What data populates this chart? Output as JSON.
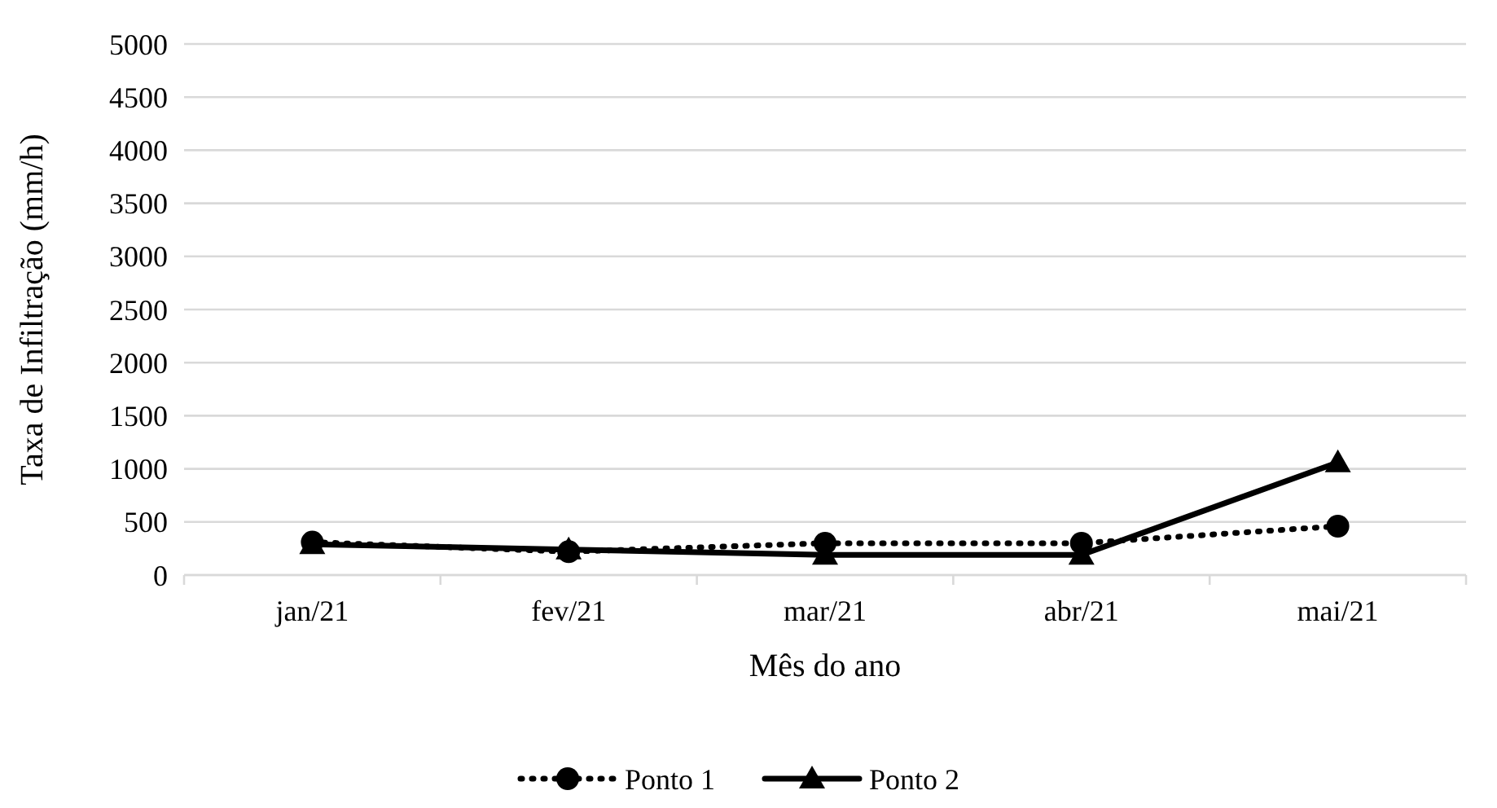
{
  "chart_data": {
    "type": "line",
    "xlabel": "Mês do ano",
    "ylabel": "Taxa de Infiltração (mm/h)",
    "categories": [
      "jan/21",
      "fev/21",
      "mar/21",
      "abr/21",
      "mai/21"
    ],
    "series": [
      {
        "name": "Ponto 1",
        "color": "#000000",
        "values": [
          310,
          220,
          300,
          300,
          460
        ],
        "marker": "circle",
        "line_style": "dotted"
      },
      {
        "name": "Ponto 2",
        "color": "#000000",
        "values": [
          290,
          240,
          190,
          190,
          1060
        ],
        "marker": "triangle",
        "line_style": "solid"
      }
    ],
    "ylim": [
      0,
      5000
    ],
    "yticks": [
      0,
      500,
      1000,
      1500,
      2000,
      2500,
      3000,
      3500,
      4000,
      4500,
      5000
    ],
    "grid": "y",
    "legend": "bottom"
  }
}
